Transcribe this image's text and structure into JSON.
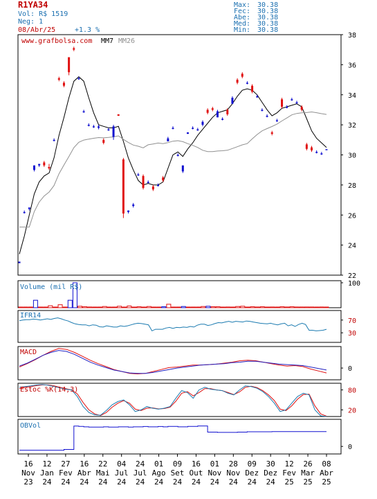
{
  "header": {
    "ticker": "R1YA34",
    "volume_text": "Vol: R$ 1519",
    "neg_text": "Neg: 1",
    "date_text": "08/Abr/25",
    "change_text": "+1.3 %",
    "stats": [
      {
        "label": "Max:",
        "value": "30.38"
      },
      {
        "label": "Fec:",
        "value": "30.38"
      },
      {
        "label": "Abe:",
        "value": "30.38"
      },
      {
        "label": "Med:",
        "value": "30.38"
      },
      {
        "label": "Min:",
        "value": "30.38"
      }
    ]
  },
  "colors": {
    "up": "#1010d0",
    "down": "#e01010",
    "mm7": "#000000",
    "mm26": "#909090",
    "indicator_line": "#1a7ab0",
    "macd_line": "#2020c0",
    "macd_signal": "#e01010",
    "stoch_k": "#1a7ab0",
    "stoch_d": "#e01010",
    "obv_line": "#1010d0",
    "label_blue": "#1a6fb0",
    "label_red": "#c00000"
  },
  "chart_data": [
    {
      "type": "candlestick",
      "title": "www.grafbolsa.com",
      "legend": [
        "MM7",
        "MM26"
      ],
      "y_ticks": [
        22,
        24,
        26,
        28,
        30,
        32,
        34,
        36,
        38
      ],
      "ylim": [
        22,
        38
      ],
      "x_tick_labels": [
        {
          "day": "16",
          "month": "Nov",
          "year": "23"
        },
        {
          "day": "12",
          "month": "Jan",
          "year": "24"
        },
        {
          "day": "27",
          "month": "Fev",
          "year": "24"
        },
        {
          "day": "16",
          "month": "Abr",
          "year": "24"
        },
        {
          "day": "22",
          "month": "Mai",
          "year": "24"
        },
        {
          "day": "04",
          "month": "Jul",
          "year": "24"
        },
        {
          "day": "24",
          "month": "Jul",
          "year": "24"
        },
        {
          "day": "01",
          "month": "Ago",
          "year": "24"
        },
        {
          "day": "09",
          "month": "Set",
          "year": "24"
        },
        {
          "day": "16",
          "month": "Out",
          "year": "24"
        },
        {
          "day": "01",
          "month": "Nov",
          "year": "24"
        },
        {
          "day": "28",
          "month": "Nov",
          "year": "24"
        },
        {
          "day": "09",
          "month": "Dez",
          "year": "24"
        },
        {
          "day": "30",
          "month": "Dez",
          "year": "24"
        },
        {
          "day": "12",
          "month": "Fev",
          "year": "25"
        },
        {
          "day": "26",
          "month": "Mar",
          "year": "25"
        },
        {
          "day": "08",
          "month": "Abr",
          "year": "25"
        }
      ],
      "ohlc": [
        [
          22.8,
          22.9,
          22.8,
          22.9
        ],
        [
          26.2,
          26.3,
          26.1,
          26.2
        ],
        [
          26.4,
          26.5,
          26.3,
          26.5
        ],
        [
          29.0,
          29.3,
          28.9,
          29.3
        ],
        [
          29.3,
          29.4,
          29.2,
          29.4
        ],
        [
          29.5,
          29.6,
          29.2,
          29.3
        ],
        [
          29.2,
          29.4,
          29.0,
          29.1
        ],
        [
          31.0,
          31.1,
          30.9,
          31.0
        ],
        [
          35.1,
          35.2,
          34.9,
          35.0
        ],
        [
          34.8,
          34.9,
          34.5,
          34.6
        ],
        [
          36.5,
          36.5,
          35.3,
          35.5
        ],
        [
          37.1,
          37.2,
          36.9,
          37.0
        ],
        [
          35.1,
          35.2,
          35.0,
          35.1
        ],
        [
          32.9,
          33.0,
          32.8,
          32.9
        ],
        [
          32.0,
          32.1,
          31.9,
          32.0
        ],
        [
          31.9,
          32.0,
          31.8,
          31.9
        ],
        [
          31.8,
          32.0,
          31.7,
          31.9
        ],
        [
          31.0,
          31.1,
          30.7,
          30.8
        ],
        [
          31.7,
          31.8,
          31.6,
          31.7
        ],
        [
          31.2,
          32.0,
          31.0,
          31.9
        ],
        [
          32.7,
          32.7,
          32.6,
          32.6
        ],
        [
          29.7,
          29.8,
          25.8,
          26.1
        ],
        [
          26.2,
          26.3,
          26.1,
          26.3
        ],
        [
          26.6,
          26.8,
          26.5,
          26.7
        ],
        [
          28.7,
          28.8,
          28.6,
          28.7
        ],
        [
          28.6,
          28.7,
          27.7,
          27.8
        ],
        [
          28.2,
          28.3,
          28.1,
          28.2
        ],
        [
          27.9,
          28.0,
          27.6,
          27.7
        ],
        [
          28.0,
          28.1,
          27.9,
          28.0
        ],
        [
          28.5,
          28.6,
          28.2,
          28.3
        ],
        [
          30.9,
          31.2,
          30.9,
          31.1
        ],
        [
          31.8,
          31.9,
          31.7,
          31.8
        ],
        [
          30.0,
          30.1,
          29.9,
          30.0
        ],
        [
          28.9,
          29.3,
          28.8,
          29.3
        ],
        [
          31.4,
          31.5,
          31.4,
          31.5
        ],
        [
          31.8,
          31.9,
          31.7,
          31.8
        ],
        [
          31.7,
          31.8,
          31.6,
          31.7
        ],
        [
          32.0,
          32.3,
          31.9,
          32.2
        ],
        [
          33.0,
          33.1,
          32.7,
          32.8
        ],
        [
          33.1,
          33.2,
          32.9,
          33.0
        ],
        [
          32.5,
          33.0,
          32.5,
          32.9
        ],
        [
          32.4,
          32.5,
          32.3,
          32.4
        ],
        [
          33.0,
          33.1,
          32.6,
          32.7
        ],
        [
          33.4,
          33.9,
          33.4,
          33.8
        ],
        [
          35.0,
          35.1,
          34.7,
          34.8
        ],
        [
          35.4,
          35.5,
          35.1,
          35.2
        ],
        [
          34.8,
          34.9,
          34.7,
          34.8
        ],
        [
          34.6,
          34.7,
          34.1,
          34.2
        ],
        [
          33.9,
          34.0,
          33.8,
          33.9
        ],
        [
          33.0,
          33.1,
          32.9,
          33.0
        ],
        [
          32.6,
          32.7,
          32.5,
          32.6
        ],
        [
          31.5,
          31.6,
          31.3,
          31.4
        ],
        [
          32.3,
          32.4,
          32.2,
          32.3
        ],
        [
          33.7,
          33.8,
          33.1,
          33.2
        ],
        [
          33.2,
          33.3,
          33.1,
          33.2
        ],
        [
          33.7,
          33.8,
          33.6,
          33.7
        ],
        [
          33.5,
          33.6,
          33.4,
          33.5
        ],
        [
          33.2,
          33.3,
          32.9,
          33.0
        ],
        [
          30.7,
          30.8,
          30.3,
          30.4
        ],
        [
          30.5,
          30.6,
          30.2,
          30.3
        ],
        [
          30.2,
          30.3,
          30.1,
          30.2
        ],
        [
          30.1,
          30.2,
          30.0,
          30.1
        ],
        [
          30.38,
          30.38,
          30.38,
          30.38
        ]
      ],
      "mm7": [
        23.4,
        24.6,
        26.0,
        27.4,
        28.2,
        28.6,
        28.8,
        29.8,
        31.3,
        32.5,
        33.8,
        34.9,
        35.2,
        34.9,
        33.8,
        32.8,
        32.0,
        31.9,
        31.8,
        31.8,
        31.9,
        30.9,
        29.8,
        29.0,
        28.3,
        28.0,
        28.1,
        28.0,
        28.0,
        28.2,
        29.1,
        30.0,
        30.2,
        29.9,
        30.4,
        30.8,
        31.3,
        31.7,
        32.1,
        32.5,
        32.8,
        32.9,
        33.0,
        33.4,
        33.9,
        34.3,
        34.4,
        34.3,
        34.0,
        33.5,
        33.0,
        32.6,
        32.8,
        33.1,
        33.2,
        33.3,
        33.4,
        33.2,
        32.4,
        31.6,
        31.1,
        30.8,
        30.5
      ]
    },
    {
      "type": "bar",
      "label": "Volume (mil R$)",
      "y_ticks": [
        100
      ],
      "ylim": [
        0,
        100
      ],
      "volumes": [
        0,
        0,
        0,
        30,
        0,
        0,
        8,
        0,
        12,
        0,
        30,
        100,
        6,
        4,
        3,
        0,
        0,
        5,
        0,
        0,
        6,
        0,
        7,
        0,
        4,
        0,
        5,
        0,
        0,
        4,
        14,
        0,
        0,
        5,
        0,
        0,
        0,
        5,
        6,
        4,
        4,
        0,
        3,
        0,
        5,
        6,
        0,
        4,
        3,
        4,
        0,
        3,
        0,
        4,
        3,
        4,
        3,
        3,
        3,
        3,
        0,
        3,
        0
      ],
      "up_mask": [
        0,
        0,
        0,
        1,
        0,
        0,
        0,
        0,
        0,
        0,
        1,
        1,
        0,
        0,
        0,
        0,
        0,
        0,
        0,
        0,
        0,
        0,
        0,
        0,
        0,
        0,
        0,
        0,
        0,
        1,
        0,
        0,
        0,
        1,
        0,
        0,
        0,
        0,
        1,
        0,
        0,
        0,
        0,
        0,
        0,
        0,
        0,
        0,
        0,
        0,
        0,
        0,
        0,
        0,
        0,
        0,
        0,
        0,
        0,
        0,
        0,
        0,
        0
      ]
    },
    {
      "type": "line",
      "label": "IFR14",
      "y_ticks": [
        70,
        30
      ],
      "ylim": [
        0,
        100
      ],
      "values": [
        68,
        70,
        71,
        71,
        73,
        72,
        70,
        72,
        74,
        72,
        75,
        77,
        74,
        70,
        67,
        62,
        58,
        56,
        55,
        55,
        52,
        55,
        54,
        49,
        48,
        52,
        50,
        48,
        48,
        52,
        50,
        52,
        55,
        58,
        60,
        59,
        57,
        55,
        36,
        41,
        41,
        41,
        45,
        47,
        44,
        47,
        46,
        48,
        47,
        50,
        48,
        54,
        57,
        57,
        53,
        55,
        59,
        62,
        61,
        64,
        66,
        63,
        66,
        65,
        64,
        67,
        66,
        64,
        62,
        60,
        59,
        58,
        60,
        57,
        55,
        58,
        60,
        52,
        55,
        50,
        56,
        60,
        56,
        38,
        38,
        36,
        37,
        38,
        41
      ]
    },
    {
      "type": "line",
      "label": "MACD",
      "y_ticks": [
        0
      ],
      "ylim": [
        -1.2,
        2.2
      ],
      "macd": [
        0.2,
        0.5,
        0.9,
        1.3,
        1.6,
        1.8,
        1.7,
        1.4,
        1.0,
        0.6,
        0.3,
        0.05,
        -0.2,
        -0.35,
        -0.5,
        -0.55,
        -0.55,
        -0.45,
        -0.3,
        -0.15,
        0.0,
        0.1,
        0.2,
        0.3,
        0.35,
        0.4,
        0.45,
        0.55,
        0.6,
        0.7,
        0.7,
        0.6,
        0.5,
        0.4,
        0.35,
        0.3,
        0.25,
        0.1,
        -0.05,
        -0.2
      ],
      "signal": [
        0.1,
        0.45,
        0.85,
        1.3,
        1.7,
        2.0,
        1.9,
        1.6,
        1.2,
        0.8,
        0.45,
        0.15,
        -0.15,
        -0.35,
        -0.55,
        -0.6,
        -0.55,
        -0.35,
        -0.15,
        0.05,
        0.1,
        0.2,
        0.3,
        0.3,
        0.35,
        0.4,
        0.5,
        0.6,
        0.75,
        0.8,
        0.75,
        0.6,
        0.45,
        0.3,
        0.2,
        0.25,
        0.15,
        -0.1,
        -0.3,
        -0.5
      ]
    },
    {
      "type": "line",
      "label": "Estoc %K(14,3)",
      "y_ticks": [
        80,
        20
      ],
      "ylim": [
        0,
        100
      ],
      "k": [
        88,
        90,
        92,
        95,
        96,
        94,
        90,
        86,
        82,
        80,
        60,
        30,
        12,
        5,
        4,
        18,
        35,
        45,
        50,
        35,
        15,
        20,
        30,
        25,
        22,
        25,
        30,
        55,
        78,
        72,
        55,
        80,
        88,
        82,
        80,
        78,
        70,
        65,
        80,
        92,
        90,
        85,
        75,
        60,
        40,
        15,
        20,
        40,
        60,
        70,
        65,
        20,
        2,
        0
      ],
      "d": [
        84,
        88,
        90,
        93,
        95,
        95,
        92,
        88,
        84,
        80,
        68,
        42,
        20,
        8,
        3,
        12,
        28,
        40,
        48,
        40,
        22,
        18,
        25,
        26,
        23,
        24,
        28,
        46,
        70,
        75,
        62,
        72,
        84,
        84,
        80,
        78,
        72,
        66,
        74,
        88,
        91,
        87,
        78,
        65,
        48,
        22,
        18,
        32,
        52,
        66,
        67,
        32,
        8,
        1
      ]
    },
    {
      "type": "line",
      "label": "OBVol",
      "y_ticks": [
        0
      ],
      "ylim": [
        -0.5,
        1.8
      ],
      "values": [
        -0.25,
        -0.25,
        -0.25,
        -0.25,
        -0.25,
        -0.25,
        -0.25,
        -0.25,
        -0.25,
        -0.2,
        -0.2,
        1.35,
        1.33,
        1.3,
        1.28,
        1.28,
        1.28,
        1.3,
        1.28,
        1.28,
        1.3,
        1.3,
        1.28,
        1.3,
        1.3,
        1.32,
        1.3,
        1.3,
        1.32,
        1.3,
        1.33,
        1.33,
        1.3,
        1.3,
        1.33,
        1.33,
        1.36,
        1.36,
        0.95,
        0.95,
        0.93,
        0.93,
        0.93,
        0.93,
        0.95,
        0.95,
        0.97,
        0.97,
        0.97,
        0.97,
        0.97,
        0.98,
        0.98,
        0.98,
        0.98,
        0.98,
        0.98,
        0.98,
        0.98,
        0.98,
        0.98,
        0.98,
        0.98
      ]
    }
  ]
}
